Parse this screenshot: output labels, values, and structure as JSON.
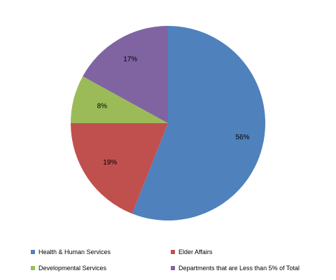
{
  "chart_data": {
    "type": "pie",
    "slices": [
      {
        "label": "Health & Human Services",
        "value": 56,
        "display": "56%",
        "color": "#4F81BD"
      },
      {
        "label": "Elder Affairs",
        "value": 19,
        "display": "19%",
        "color": "#C0504D"
      },
      {
        "label": "Developmental Services",
        "value": 8,
        "display": "8%",
        "color": "#9BBB59"
      },
      {
        "label": "Departments that are Less than 5% of Total",
        "value": 17,
        "display": "17%",
        "color": "#8064A2"
      }
    ],
    "start_angle": "12 o'clock",
    "direction": "clockwise",
    "legend_position": "bottom"
  }
}
